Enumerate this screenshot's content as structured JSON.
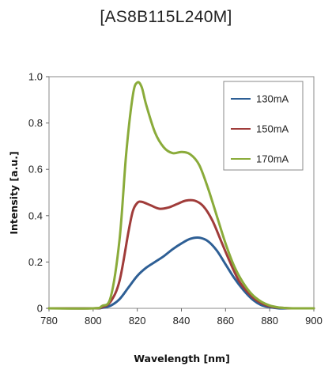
{
  "chart_data": {
    "type": "line",
    "title": "[AS8B115L240M]",
    "xlabel": "Wavelength [nm]",
    "ylabel": "Intensity [a.u.]",
    "xlim": [
      780,
      900
    ],
    "ylim": [
      0,
      1.0
    ],
    "xticks": [
      "780",
      "800",
      "820",
      "840",
      "860",
      "880",
      "900"
    ],
    "yticks": [
      "0",
      "0.2",
      "0.4",
      "0.6",
      "0.8",
      "1.0"
    ],
    "grid": false,
    "legend_position": "top-right",
    "series": [
      {
        "name": "130mA",
        "color": "#2e5f95",
        "x": [
          780,
          800,
          804,
          808,
          812,
          816,
          820,
          824,
          828,
          832,
          836,
          840,
          844,
          848,
          852,
          856,
          860,
          864,
          868,
          872,
          876,
          880,
          884,
          888,
          900
        ],
        "y": [
          0,
          0,
          0.002,
          0.012,
          0.04,
          0.09,
          0.14,
          0.175,
          0.2,
          0.225,
          0.255,
          0.28,
          0.3,
          0.305,
          0.29,
          0.25,
          0.19,
          0.13,
          0.08,
          0.04,
          0.015,
          0.005,
          0,
          0,
          0
        ]
      },
      {
        "name": "150mA",
        "color": "#a03c3a",
        "x": [
          780,
          800,
          804,
          808,
          812,
          816,
          818,
          820,
          822,
          826,
          830,
          834,
          838,
          842,
          846,
          850,
          854,
          858,
          862,
          866,
          870,
          874,
          878,
          882,
          886,
          890,
          900
        ],
        "y": [
          0,
          0,
          0.005,
          0.03,
          0.12,
          0.33,
          0.42,
          0.455,
          0.46,
          0.445,
          0.43,
          0.435,
          0.45,
          0.465,
          0.465,
          0.44,
          0.38,
          0.29,
          0.2,
          0.12,
          0.07,
          0.035,
          0.015,
          0.005,
          0.002,
          0,
          0
        ]
      },
      {
        "name": "170mA",
        "color": "#8aab3a",
        "x": [
          780,
          800,
          804,
          808,
          812,
          815,
          818,
          820,
          822,
          824,
          828,
          832,
          836,
          840,
          844,
          848,
          852,
          856,
          860,
          864,
          868,
          872,
          876,
          880,
          884,
          888,
          892,
          900
        ],
        "y": [
          0,
          0,
          0.01,
          0.05,
          0.3,
          0.67,
          0.92,
          0.975,
          0.955,
          0.88,
          0.76,
          0.695,
          0.67,
          0.675,
          0.665,
          0.62,
          0.52,
          0.4,
          0.28,
          0.18,
          0.11,
          0.06,
          0.03,
          0.012,
          0.004,
          0.001,
          0,
          0
        ]
      }
    ]
  }
}
